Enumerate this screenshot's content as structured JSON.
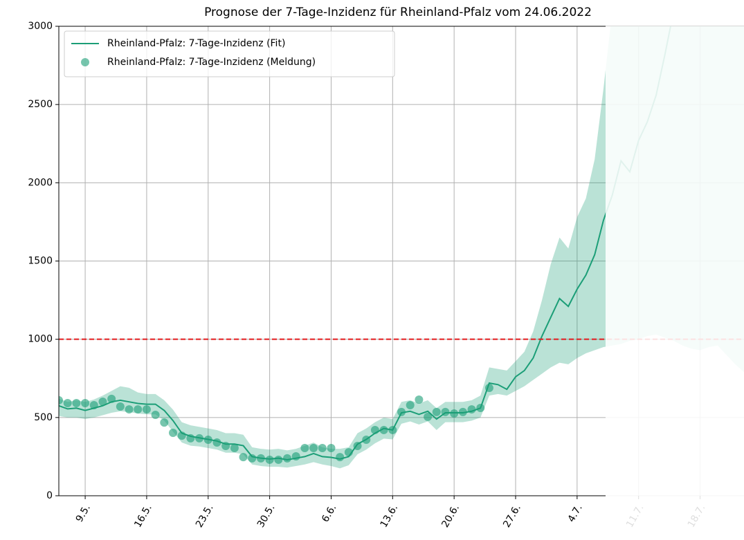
{
  "chart_data": {
    "type": "line",
    "title": "Prognose der 7-Tage-Inzidenz für Rheinland-Pfalz vom 24.06.2022",
    "x": [
      0,
      1,
      2,
      3,
      4,
      5,
      6,
      7,
      8,
      9,
      10,
      11,
      12,
      13,
      14,
      15,
      16,
      17,
      18,
      19,
      20,
      21,
      22,
      23,
      24,
      25,
      26,
      27,
      28,
      29,
      30,
      31,
      32,
      33,
      34,
      35,
      36,
      37,
      38,
      39,
      40,
      41,
      42,
      43,
      44,
      45,
      46,
      47,
      48,
      49,
      50,
      51,
      52,
      53,
      54,
      55,
      56,
      57,
      58,
      59,
      60,
      61,
      62,
      63,
      64,
      65,
      66,
      67,
      68,
      69,
      70,
      71,
      72,
      73,
      74,
      75,
      76,
      77,
      78
    ],
    "xlim": [
      0,
      78
    ],
    "xticks": [
      {
        "value": 3,
        "label": "9.5."
      },
      {
        "value": 10,
        "label": "16.5."
      },
      {
        "value": 17,
        "label": "23.5."
      },
      {
        "value": 24,
        "label": "30.5."
      },
      {
        "value": 31,
        "label": "6.6."
      },
      {
        "value": 38,
        "label": "13.6."
      },
      {
        "value": 45,
        "label": "20.6."
      },
      {
        "value": 52,
        "label": "27.6."
      },
      {
        "value": 59,
        "label": "4.7."
      },
      {
        "value": 66,
        "label": "11.7."
      },
      {
        "value": 73,
        "label": "18.7."
      }
    ],
    "ylim": [
      0,
      3000
    ],
    "yticks": [
      0,
      500,
      1000,
      1500,
      2000,
      2500,
      3000
    ],
    "grid": true,
    "legend": "upper left",
    "threshold": {
      "value": 1000,
      "color": "#e31a1c"
    },
    "series": [
      {
        "name": "Rheinland-Pfalz: 7-Tage-Inzidenz (Fit)",
        "type": "line",
        "color": "#1b9e77",
        "values": [
          575,
          555,
          560,
          545,
          560,
          575,
          600,
          610,
          600,
          590,
          585,
          585,
          545,
          480,
          400,
          380,
          370,
          360,
          350,
          330,
          330,
          320,
          250,
          240,
          235,
          240,
          230,
          240,
          250,
          270,
          250,
          245,
          235,
          250,
          330,
          360,
          400,
          430,
          420,
          530,
          540,
          520,
          540,
          490,
          530,
          530,
          530,
          540,
          560,
          720,
          710,
          680,
          760,
          800,
          880,
          1020,
          1140,
          1260,
          1210,
          1320,
          1410,
          1540,
          1760,
          1920,
          2140,
          2070,
          2270,
          2390,
          2560,
          2820,
          3100,
          null,
          null,
          null,
          null,
          null,
          null,
          null,
          null
        ],
        "lower": [
          510,
          500,
          500,
          490,
          500,
          515,
          530,
          540,
          535,
          525,
          520,
          520,
          480,
          410,
          340,
          320,
          315,
          305,
          295,
          275,
          275,
          265,
          200,
          190,
          185,
          185,
          180,
          190,
          200,
          215,
          200,
          190,
          175,
          195,
          265,
          295,
          335,
          365,
          360,
          460,
          475,
          455,
          475,
          420,
          470,
          470,
          470,
          480,
          500,
          640,
          650,
          640,
          670,
          700,
          740,
          780,
          820,
          850,
          840,
          880,
          910,
          930,
          950,
          960,
          970,
          990,
          1000,
          1020,
          1030,
          1010,
          990,
          960,
          940,
          930,
          950,
          960,
          900,
          840,
          790
        ],
        "upper": [
          620,
          600,
          610,
          600,
          615,
          640,
          670,
          700,
          690,
          660,
          650,
          650,
          610,
          550,
          470,
          450,
          440,
          430,
          420,
          400,
          400,
          390,
          310,
          300,
          295,
          300,
          290,
          300,
          320,
          340,
          310,
          300,
          300,
          310,
          400,
          430,
          470,
          500,
          490,
          600,
          610,
          590,
          610,
          560,
          600,
          600,
          600,
          610,
          640,
          820,
          810,
          800,
          860,
          920,
          1050,
          1250,
          1480,
          1650,
          1580,
          1780,
          1900,
          2150,
          2600,
          3100,
          3200,
          3300,
          3400,
          3500,
          3600,
          3700,
          3800,
          3900,
          4000,
          4000,
          4000,
          4000,
          4000,
          4000,
          4000
        ]
      },
      {
        "name": "Rheinland-Pfalz: 7-Tage-Inzidenz (Meldung)",
        "type": "scatter",
        "color": "#1b9e77",
        "values": [
          610,
          592,
          592,
          592,
          579,
          601,
          619,
          570,
          552,
          552,
          552,
          517,
          468,
          402,
          384,
          367,
          367,
          358,
          340,
          318,
          305,
          247,
          239,
          239,
          230,
          230,
          239,
          252,
          305,
          305,
          305,
          305,
          247,
          278,
          318,
          358,
          420,
          420,
          420,
          535,
          579,
          614,
          504,
          535,
          535,
          526,
          535,
          552,
          561,
          689,
          null,
          null,
          null,
          null,
          null,
          null,
          null,
          null,
          null,
          null,
          null,
          null,
          null,
          null,
          null,
          null,
          null,
          null,
          null,
          null,
          null,
          null,
          null,
          null,
          null,
          null,
          null,
          null,
          null
        ]
      }
    ]
  }
}
